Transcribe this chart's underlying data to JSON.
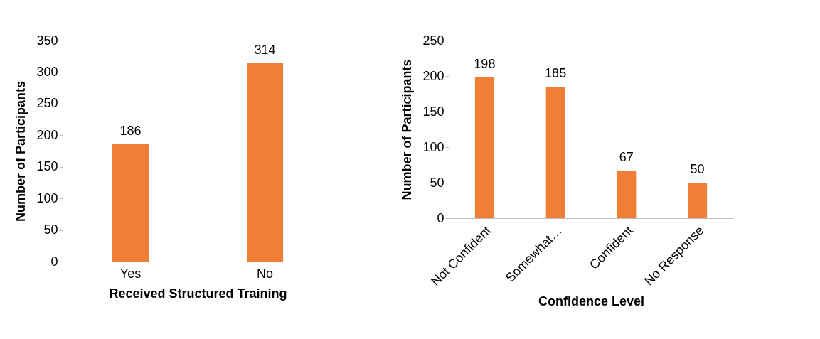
{
  "chart_data": [
    {
      "type": "bar",
      "xlabel": "Received Structured Training",
      "ylabel": "Number of Participants",
      "categories": [
        "Yes",
        "No"
      ],
      "values": [
        186,
        314
      ],
      "color": "#ef7f35",
      "ylim": [
        0,
        350
      ],
      "yticks": [
        0,
        50,
        100,
        150,
        200,
        250,
        300,
        350
      ],
      "data_labels": true
    },
    {
      "type": "bar",
      "xlabel": "Confidence Level",
      "ylabel": "Number of Participants",
      "categories": [
        "Not Confident",
        "Somewhat…",
        "Confident",
        "No Response"
      ],
      "values": [
        198,
        185,
        67,
        50
      ],
      "color": "#ef7f35",
      "ylim": [
        0,
        250
      ],
      "yticks": [
        0,
        50,
        100,
        150,
        200,
        250
      ],
      "data_labels": true
    }
  ]
}
